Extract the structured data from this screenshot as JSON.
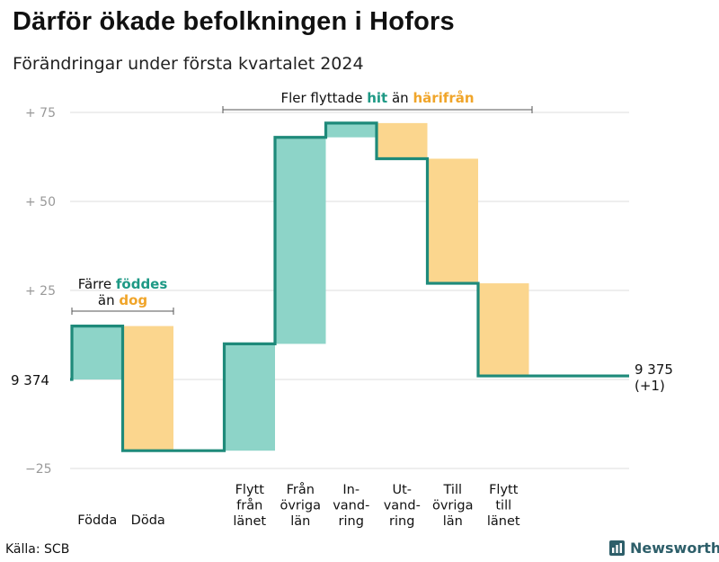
{
  "title": "Därför ökade befolkningen i Hofors",
  "subtitle": "Förändringar under första kvartalet 2024",
  "source": "Källa: SCB",
  "logo": {
    "text": "Newsworthy",
    "color": "#2e5f6a"
  },
  "colors": {
    "increase": "#8dd4c8",
    "decrease": "#fbd68e",
    "line": "#1e8a7a",
    "grid": "#dddddd"
  },
  "chart_data": {
    "type": "waterfall",
    "start": {
      "label": "9 374",
      "value": 9374
    },
    "end": {
      "label_line1": "9 375",
      "label_line2": "(+1)",
      "value": 9375
    },
    "ylim": [
      -25,
      75
    ],
    "yticks": [
      {
        "value": 75,
        "label": "+  75"
      },
      {
        "value": 50,
        "label": "+  50"
      },
      {
        "value": 25,
        "label": "+  25"
      },
      {
        "value": 0,
        "label": ""
      },
      {
        "value": -25,
        "label": "−25"
      }
    ],
    "steps": [
      {
        "label_lines": [
          "Födda"
        ],
        "value": 15,
        "kind": "increase"
      },
      {
        "label_lines": [
          "Döda"
        ],
        "value": -35,
        "kind": "decrease"
      },
      {
        "label_lines": [],
        "value": 0,
        "kind": "gap"
      },
      {
        "label_lines": [
          "Flytt",
          "från",
          "länet"
        ],
        "value": 30,
        "kind": "increase"
      },
      {
        "label_lines": [
          "Från",
          "övriga",
          "län"
        ],
        "value": 58,
        "kind": "increase"
      },
      {
        "label_lines": [
          "In-",
          "vand-",
          "ring"
        ],
        "value": 4,
        "kind": "increase"
      },
      {
        "label_lines": [
          "Ut-",
          "vand-",
          "ring"
        ],
        "value": -10,
        "kind": "decrease"
      },
      {
        "label_lines": [
          "Till",
          "övriga",
          "län"
        ],
        "value": -35,
        "kind": "decrease"
      },
      {
        "label_lines": [
          "Flytt",
          "till",
          "länet"
        ],
        "value": -26,
        "kind": "decrease"
      }
    ],
    "annotations": [
      {
        "id": "births",
        "line1": "Färre",
        "line1_hl": "föddes",
        "line2": "än",
        "line2_hl": "dog",
        "span": [
          0,
          1
        ]
      },
      {
        "id": "moves",
        "text": "Fler flyttade",
        "hl1": "hit",
        "mid": "än",
        "hl2": "härifrån",
        "span": [
          3,
          8
        ]
      }
    ]
  }
}
